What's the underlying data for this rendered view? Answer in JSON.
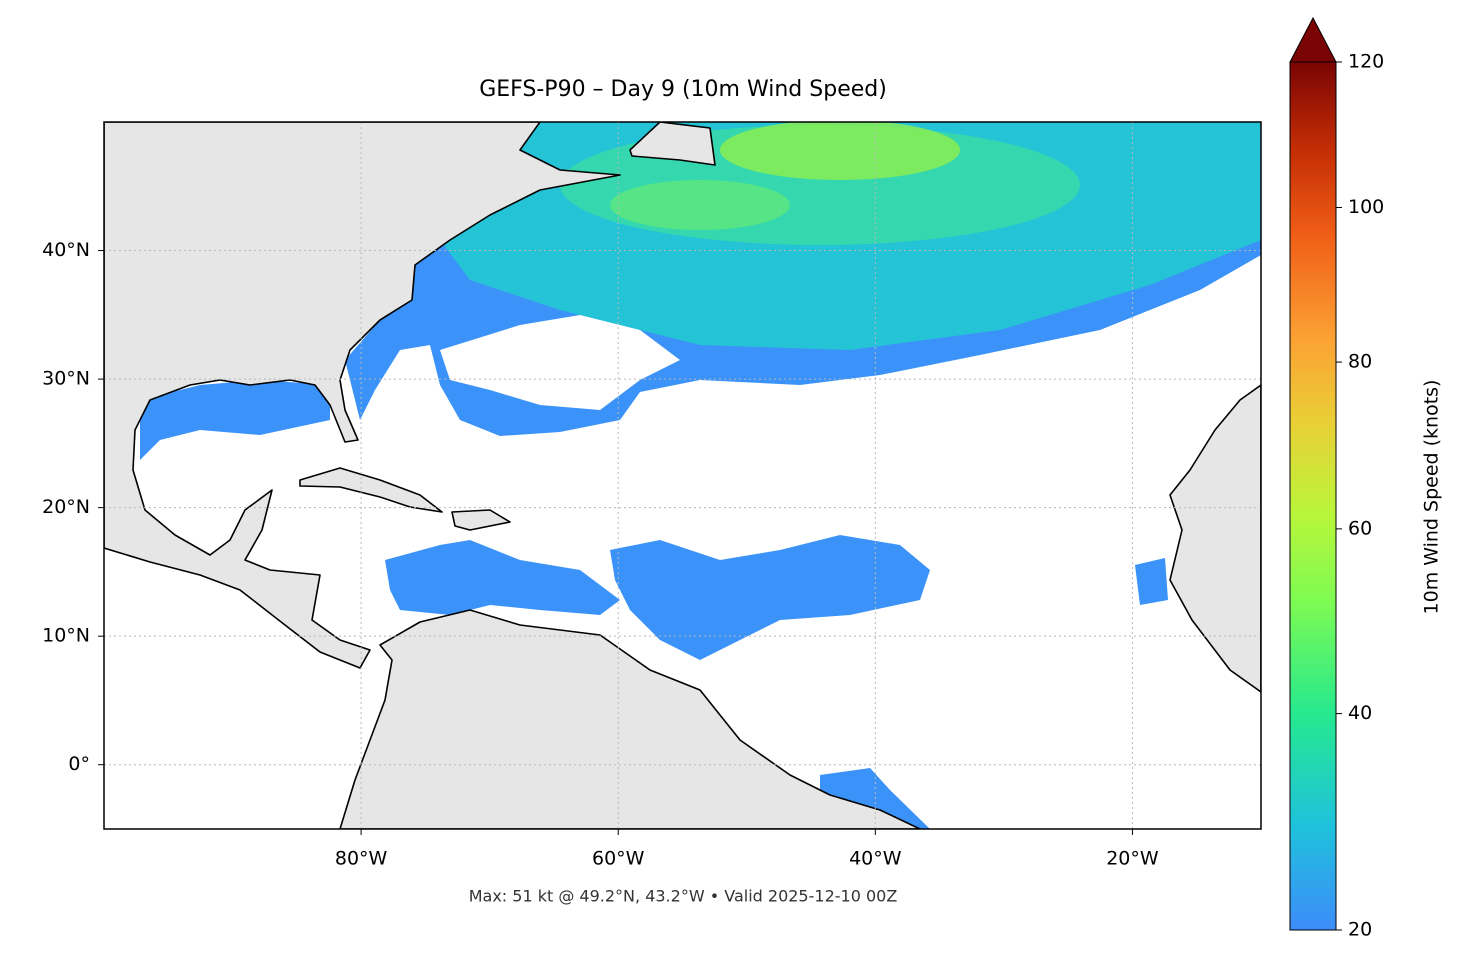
{
  "chart_data": {
    "type": "map",
    "title": "GEFS-P90 – Day 9 (10m Wind Speed)",
    "footnote": "Max: 51 kt @ 49.2°N, 43.2°W • Valid 2025-12-10 00Z",
    "xlim": [
      -100,
      -10
    ],
    "ylim": [
      -5,
      50
    ],
    "xticks": [
      {
        "value": -80,
        "label": "80°W"
      },
      {
        "value": -60,
        "label": "60°W"
      },
      {
        "value": -40,
        "label": "40°W"
      },
      {
        "value": -20,
        "label": "20°W"
      }
    ],
    "yticks": [
      {
        "value": 0,
        "label": "0°"
      },
      {
        "value": 10,
        "label": "10°N"
      },
      {
        "value": 20,
        "label": "20°N"
      },
      {
        "value": 30,
        "label": "30°N"
      },
      {
        "value": 40,
        "label": "40°N"
      }
    ],
    "grid": true,
    "colorbar": {
      "label": "10m Wind Speed (knots)",
      "lim": [
        20,
        120
      ],
      "ticks": [
        20,
        40,
        60,
        80,
        100,
        120
      ],
      "gamma": 0.7,
      "extend": "max"
    }
  }
}
